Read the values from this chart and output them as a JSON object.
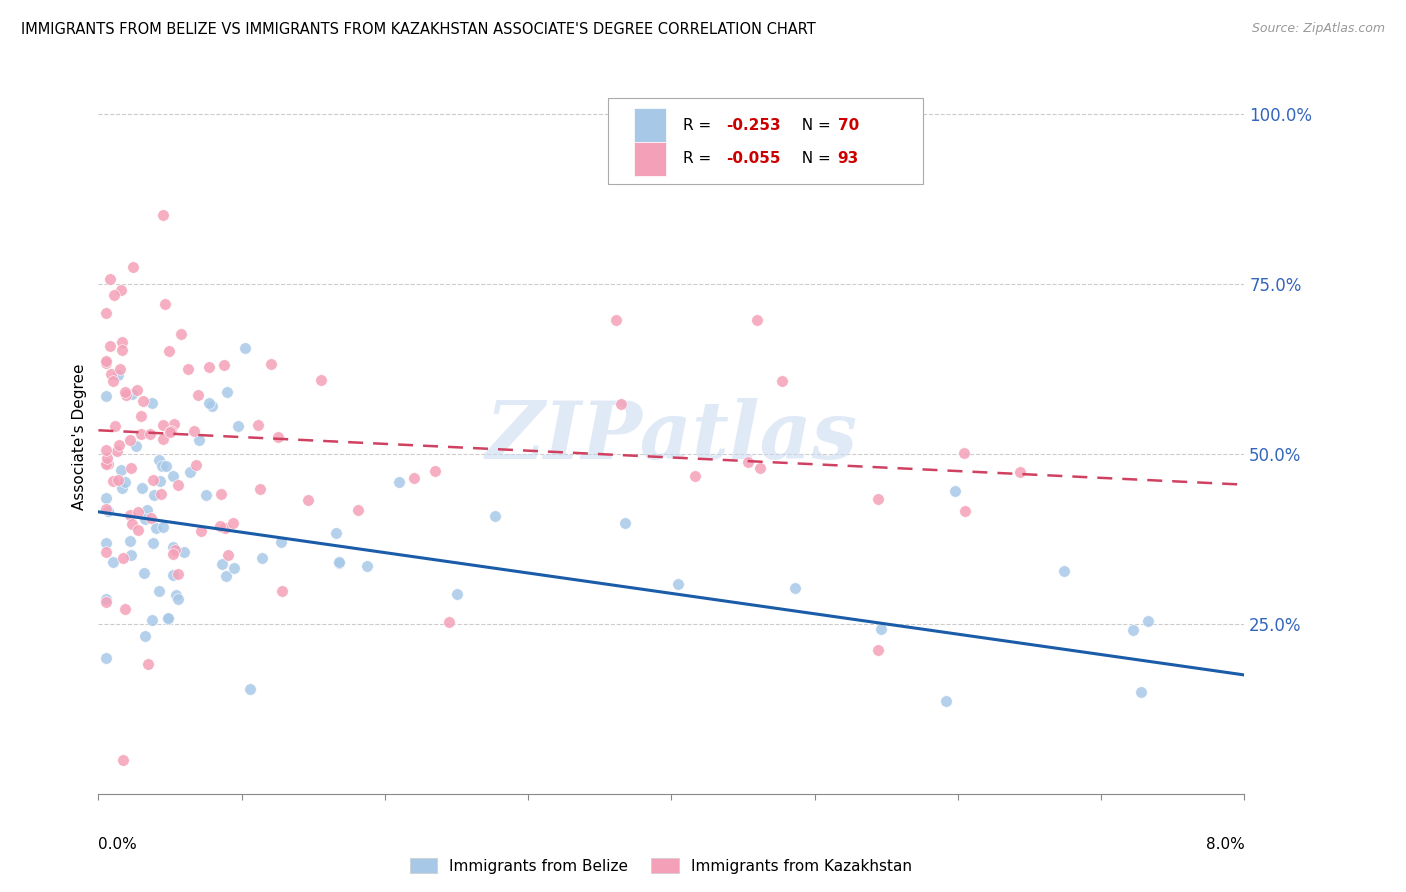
{
  "title": "IMMIGRANTS FROM BELIZE VS IMMIGRANTS FROM KAZAKHSTAN ASSOCIATE'S DEGREE CORRELATION CHART",
  "source": "Source: ZipAtlas.com",
  "ylabel": "Associate's Degree",
  "right_yticks": [
    "100.0%",
    "75.0%",
    "50.0%",
    "25.0%"
  ],
  "right_ytick_vals": [
    1.0,
    0.75,
    0.5,
    0.25
  ],
  "belize_color": "#a8c8e8",
  "kazakhstan_color": "#f4a0b8",
  "belize_line_color": "#1a5ca8",
  "kazakhstan_line_color": "#d04060",
  "watermark_text": "ZIPatlas",
  "xlim": [
    0.0,
    0.08
  ],
  "ylim": [
    0.0,
    1.05
  ],
  "belize_N": 70,
  "kazakhstan_N": 93,
  "belize_R": -0.253,
  "kazakhstan_R": -0.055,
  "belize_line_x": [
    0.0,
    0.08
  ],
  "belize_line_y": [
    0.415,
    0.175
  ],
  "kazakhstan_line_x": [
    0.0,
    0.08
  ],
  "kazakhstan_line_y": [
    0.535,
    0.455
  ]
}
